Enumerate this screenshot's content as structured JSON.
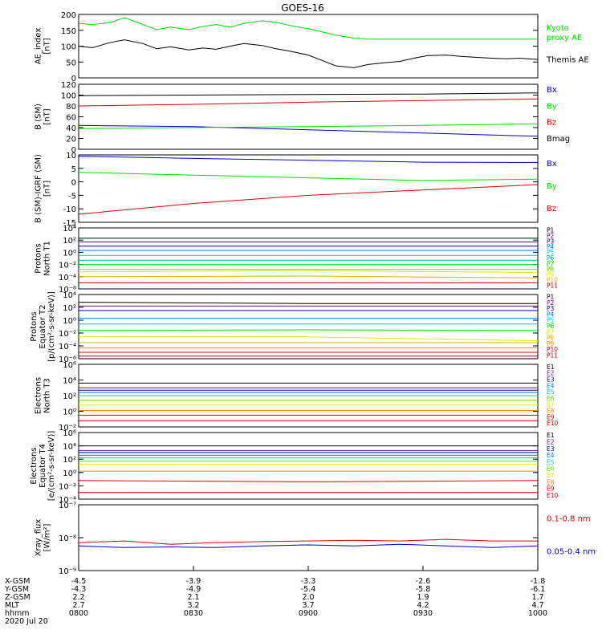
{
  "title": "GOES-16",
  "colors": {
    "black": "#000000",
    "red": "#dd0000",
    "green": "#00dd00",
    "blue": "#0000cc",
    "navy": "#000080",
    "purple": "#6a0d83",
    "azure": "#0077ff",
    "cyan": "#00c8c8",
    "teal": "#00aa99",
    "lime": "#66dd00",
    "yellow": "#e6e600",
    "gold": "#e0b000",
    "orange": "#ff8800",
    "darkred": "#aa0000",
    "maroon": "#bb0000"
  },
  "chart_data": [
    {
      "type": "line",
      "ylabel": "AE_index\n[nT]",
      "ylim": [
        0,
        200
      ],
      "yticks": [
        "0",
        "50",
        "100",
        "150",
        "200"
      ],
      "x": [
        0,
        0.03,
        0.07,
        0.1,
        0.14,
        0.17,
        0.2,
        0.24,
        0.27,
        0.3,
        0.33,
        0.36,
        0.4,
        0.43,
        0.46,
        0.5,
        0.53,
        0.56,
        0.6,
        0.63,
        0.67,
        0.7,
        0.73,
        0.76,
        0.8,
        0.83,
        0.86,
        0.9,
        0.93,
        0.96,
        1
      ],
      "series": [
        {
          "name": "Kyoto\nproxy AE",
          "color": "green",
          "values": [
            172,
            168,
            175,
            190,
            168,
            152,
            160,
            152,
            162,
            168,
            160,
            172,
            180,
            175,
            165,
            155,
            145,
            135,
            125,
            122,
            122,
            122,
            122,
            122,
            122,
            122,
            122,
            122,
            122,
            122,
            122
          ]
        },
        {
          "name": "Themis AE",
          "color": "black",
          "values": [
            100,
            95,
            112,
            120,
            108,
            92,
            98,
            88,
            94,
            90,
            100,
            108,
            102,
            92,
            84,
            72,
            55,
            38,
            32,
            42,
            48,
            52,
            62,
            70,
            72,
            68,
            65,
            62,
            60,
            62,
            58
          ]
        }
      ]
    },
    {
      "type": "line",
      "ylabel": "B (SM)\n[nT]",
      "ylim": [
        0,
        120
      ],
      "yticks": [
        "0",
        "20",
        "40",
        "60",
        "80",
        "100",
        "120"
      ],
      "x": [
        0,
        0.25,
        0.5,
        0.75,
        1
      ],
      "series": [
        {
          "name": "Bx",
          "color": "blue",
          "values": [
            44,
            42,
            36,
            30,
            24
          ]
        },
        {
          "name": "By",
          "color": "green",
          "values": [
            38,
            40,
            42,
            44,
            47
          ]
        },
        {
          "name": "Bz",
          "color": "red",
          "values": [
            80,
            83,
            87,
            90,
            93
          ]
        },
        {
          "name": "Bmag",
          "color": "black",
          "values": [
            99,
            100,
            101,
            102,
            104
          ]
        }
      ]
    },
    {
      "type": "line",
      "ylabel": "B (SM)-IGRF (SM)\n[nT]",
      "ylim": [
        -15,
        10
      ],
      "yticks": [
        "-15",
        "-10",
        "-5",
        "0",
        "5",
        "10"
      ],
      "x": [
        0,
        0.25,
        0.5,
        0.75,
        1
      ],
      "series": [
        {
          "name": "Bx",
          "color": "blue",
          "values": [
            9.5,
            8.7,
            8.0,
            7.3,
            7.2
          ]
        },
        {
          "name": "By",
          "color": "green",
          "values": [
            3.5,
            2.5,
            1.5,
            0.5,
            1.0
          ]
        },
        {
          "name": "Bz",
          "color": "red",
          "values": [
            -12.0,
            -8.0,
            -5.0,
            -3.0,
            -1.0
          ]
        }
      ]
    },
    {
      "type": "line",
      "ylabel": "Protons\nNorth T1",
      "yscale": "log",
      "ylim": [
        -6,
        4
      ],
      "yticks": [
        "10⁻⁶",
        "10⁻⁴",
        "10⁻²",
        "10⁰",
        "10²",
        "10⁴"
      ],
      "x": [
        0,
        0.5,
        1
      ],
      "series": [
        {
          "name": "P1",
          "color": "black",
          "values": [
            2.3,
            2.3,
            2.3
          ]
        },
        {
          "name": "P2",
          "color": "purple",
          "values": [
            1.7,
            1.7,
            1.7
          ]
        },
        {
          "name": "P3",
          "color": "navy",
          "values": [
            1.0,
            1.0,
            1.0
          ]
        },
        {
          "name": "P4",
          "color": "azure",
          "values": [
            0.3,
            0.3,
            0.3
          ]
        },
        {
          "name": "P5",
          "color": "cyan",
          "values": [
            -0.5,
            -0.5,
            -0.5
          ]
        },
        {
          "name": "P6",
          "color": "teal",
          "values": [
            -1.3,
            -1.3,
            -1.3
          ]
        },
        {
          "name": "P7",
          "color": "green",
          "values": [
            -2.0,
            -2.0,
            -2.0
          ]
        },
        {
          "name": "P8",
          "color": "lime",
          "values": [
            -2.8,
            -2.8,
            -2.8
          ]
        },
        {
          "name": "P9",
          "color": "yellow",
          "values": [
            -3.2,
            -3.0,
            -3.3
          ]
        },
        {
          "name": "P10",
          "color": "gold",
          "values": [
            -4.0,
            -3.9,
            -4.2
          ]
        },
        {
          "name": "P11",
          "color": "maroon",
          "values": [
            -5.0,
            -5.0,
            -5.0
          ]
        }
      ]
    },
    {
      "type": "line",
      "ylabel": "Protons\nEquator T2\n[p/(cm²-s-sr-keV)]",
      "yscale": "log",
      "ylim": [
        -6,
        4
      ],
      "yticks": [
        "10⁻⁶",
        "10⁻⁴",
        "10⁻²",
        "10⁰",
        "10²",
        "10⁴"
      ],
      "x": [
        0,
        0.5,
        1
      ],
      "series": [
        {
          "name": "P1",
          "color": "black",
          "values": [
            2.8,
            2.6,
            2.6
          ]
        },
        {
          "name": "P2",
          "color": "purple",
          "values": [
            2.2,
            2.2,
            2.2
          ]
        },
        {
          "name": "P3",
          "color": "navy",
          "values": [
            1.5,
            1.5,
            1.5
          ]
        },
        {
          "name": "P4",
          "color": "azure",
          "values": [
            0.3,
            0.3,
            0.3
          ]
        },
        {
          "name": "P5",
          "color": "cyan",
          "values": [
            -0.6,
            -0.6,
            -0.6
          ]
        },
        {
          "name": "P6",
          "color": "green",
          "values": [
            -1.6,
            -1.5,
            -1.6
          ]
        },
        {
          "name": "P7",
          "color": "yellow",
          "values": [
            -2.6,
            -2.6,
            -3.2
          ]
        },
        {
          "name": "P8",
          "color": "gold",
          "values": [
            -3.5,
            -3.5,
            -3.5
          ]
        },
        {
          "name": "P9",
          "color": "orange",
          "values": [
            -4.3,
            -4.3,
            -4.3
          ]
        },
        {
          "name": "P10",
          "color": "red",
          "values": [
            -5.0,
            -5.0,
            -5.0
          ]
        },
        {
          "name": "P11",
          "color": "maroon",
          "values": [
            -5.6,
            -5.6,
            -5.6
          ]
        }
      ]
    },
    {
      "type": "line",
      "ylabel": "Electrons\nNorth T3",
      "yscale": "log",
      "ylim": [
        -2,
        6
      ],
      "yticks": [
        "10⁻²",
        "10⁰",
        "10²",
        "10⁴",
        "10⁶"
      ],
      "x": [
        0,
        0.5,
        1
      ],
      "series": [
        {
          "name": "E1",
          "color": "black",
          "values": [
            3.6,
            3.6,
            3.6
          ]
        },
        {
          "name": "E2",
          "color": "purple",
          "values": [
            3.0,
            3.0,
            3.0
          ]
        },
        {
          "name": "E3",
          "color": "navy",
          "values": [
            2.7,
            2.7,
            2.7
          ]
        },
        {
          "name": "E4",
          "color": "azure",
          "values": [
            2.4,
            2.4,
            2.4
          ]
        },
        {
          "name": "E5",
          "color": "cyan",
          "values": [
            2.0,
            2.0,
            2.0
          ]
        },
        {
          "name": "E6",
          "color": "lime",
          "values": [
            1.4,
            1.4,
            1.4
          ]
        },
        {
          "name": "E7",
          "color": "yellow",
          "values": [
            0.8,
            0.8,
            0.8
          ]
        },
        {
          "name": "E8",
          "color": "orange",
          "values": [
            0.1,
            0.1,
            0.1
          ]
        },
        {
          "name": "E9",
          "color": "red",
          "values": [
            -0.5,
            -0.5,
            -0.5
          ]
        },
        {
          "name": "E10",
          "color": "maroon",
          "values": [
            -1.2,
            -1.2,
            -1.2
          ]
        }
      ]
    },
    {
      "type": "line",
      "ylabel": "Electrons\nEquator T4\n[e/(cm²-s-sr-keV)]",
      "yscale": "log",
      "ylim": [
        -4,
        6
      ],
      "yticks": [
        "10⁻⁴",
        "10⁻²",
        "10⁰",
        "10²",
        "10⁴",
        "10⁶"
      ],
      "x": [
        0,
        0.5,
        1
      ],
      "series": [
        {
          "name": "E1",
          "color": "black",
          "values": [
            4.0,
            4.0,
            4.0
          ]
        },
        {
          "name": "E2",
          "color": "purple",
          "values": [
            3.3,
            3.3,
            3.3
          ]
        },
        {
          "name": "E3",
          "color": "navy",
          "values": [
            3.0,
            3.0,
            3.0
          ]
        },
        {
          "name": "E4",
          "color": "azure",
          "values": [
            2.6,
            2.6,
            2.6
          ]
        },
        {
          "name": "E5",
          "color": "cyan",
          "values": [
            2.2,
            2.2,
            2.2
          ]
        },
        {
          "name": "E6",
          "color": "lime",
          "values": [
            1.7,
            1.7,
            1.7
          ]
        },
        {
          "name": "E7",
          "color": "yellow",
          "values": [
            1.2,
            1.2,
            1.2
          ]
        },
        {
          "name": "E8",
          "color": "orange",
          "values": [
            0.2,
            0.2,
            0.2
          ]
        },
        {
          "name": "E9",
          "color": "red",
          "values": [
            -1.2,
            -1.4,
            -1.2
          ]
        },
        {
          "name": "E10",
          "color": "maroon",
          "values": [
            -3.0,
            -3.0,
            -3.0
          ]
        }
      ]
    },
    {
      "type": "line",
      "ylabel": "Xray_flux\n[W/m²]",
      "yscale": "log",
      "ylim": [
        -9,
        -7
      ],
      "yticks": [
        "10⁻⁹",
        "10⁻⁸",
        "10⁻⁷"
      ],
      "x": [
        0,
        0.1,
        0.2,
        0.3,
        0.4,
        0.5,
        0.6,
        0.7,
        0.8,
        0.9,
        1
      ],
      "series": [
        {
          "name": "0.1-0.8 nm",
          "color": "red",
          "values": [
            -8.15,
            -8.1,
            -8.2,
            -8.15,
            -8.12,
            -8.1,
            -8.08,
            -8.1,
            -8.05,
            -8.1,
            -8.1
          ]
        },
        {
          "name": "0.05-0.4 nm",
          "color": "blue",
          "values": [
            -8.25,
            -8.3,
            -8.28,
            -8.3,
            -8.25,
            -8.22,
            -8.25,
            -8.2,
            -8.25,
            -8.3,
            -8.25
          ]
        }
      ]
    }
  ],
  "xaxis": {
    "row_labels": [
      "X-GSM",
      "Y-GSM",
      "Z-GSM",
      "MLT",
      "hhmm",
      "2020 Jul 20"
    ],
    "ticks": [
      {
        "values": [
          "-4.5",
          "-4.3",
          "2.2",
          "2.7",
          "0800"
        ]
      },
      {
        "values": [
          "-3.9",
          "-4.9",
          "2.1",
          "3.2",
          "0830"
        ]
      },
      {
        "values": [
          "-3.3",
          "-5.4",
          "2.0",
          "3.7",
          "0900"
        ]
      },
      {
        "values": [
          "-2.6",
          "-5.8",
          "1.9",
          "4.2",
          "0930"
        ]
      },
      {
        "values": [
          "-1.8",
          "-6.1",
          "1.7",
          "4.7",
          "1000"
        ]
      }
    ]
  }
}
